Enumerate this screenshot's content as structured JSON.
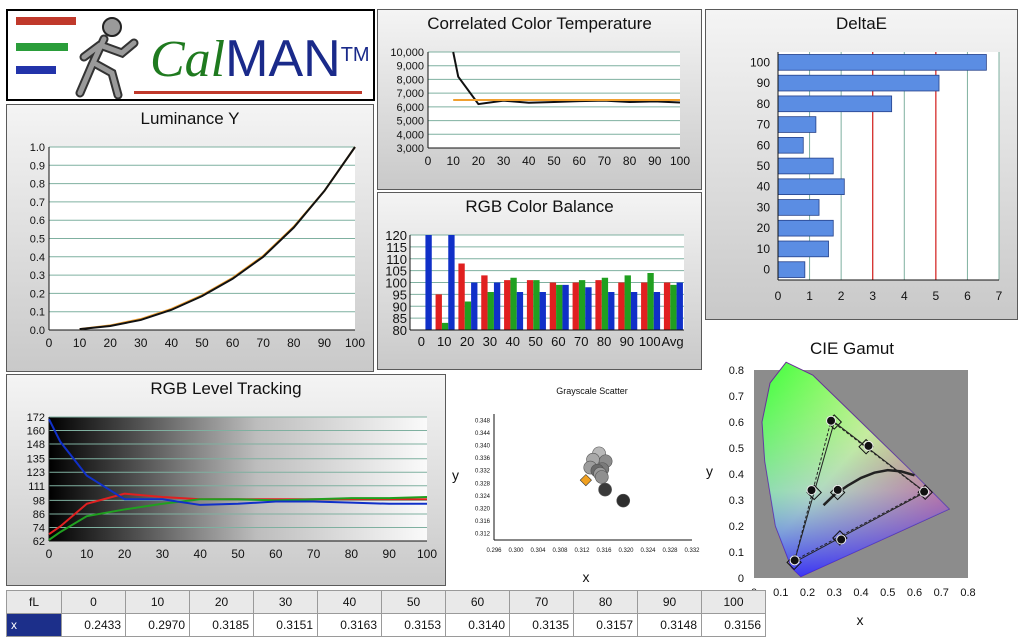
{
  "logo": {
    "text_cal": "Cal",
    "text_man": "MAN",
    "tm": "TM"
  },
  "charts": {
    "cct": {
      "title": "Correlated Color Temperature",
      "type": "line",
      "x": [
        10,
        12,
        20,
        30,
        40,
        50,
        60,
        70,
        80,
        90,
        100
      ],
      "series": [
        {
          "values": [
            10000,
            8200,
            6200,
            6450,
            6300,
            6350,
            6420,
            6450,
            6350,
            6400,
            6320
          ],
          "color": "#111111"
        },
        {
          "values": [
            6500,
            6500,
            6500,
            6500,
            6500,
            6500,
            6500,
            6500,
            6500,
            6500,
            6500
          ],
          "color": "#f0a030"
        }
      ],
      "yticks": [
        "10,000",
        "9,000",
        "8,000",
        "7,000",
        "6,000",
        "5,000",
        "4,000",
        "3,000"
      ],
      "xticks": [
        "0",
        "10",
        "20",
        "30",
        "40",
        "50",
        "60",
        "70",
        "80",
        "90",
        "100"
      ],
      "ylim": [
        3000,
        10000
      ],
      "xlim": [
        0,
        100
      ]
    },
    "deltae": {
      "title": "DeltaE",
      "type": "bar",
      "categories": [
        "100",
        "90",
        "80",
        "70",
        "60",
        "50",
        "40",
        "30",
        "20",
        "10",
        "0"
      ],
      "values": [
        6.6,
        5.1,
        3.6,
        1.2,
        0.8,
        1.75,
        2.1,
        1.3,
        1.75,
        1.6,
        0.85
      ],
      "xticks": [
        "0",
        "1",
        "2",
        "3",
        "4",
        "5",
        "6",
        "7"
      ],
      "xlim": [
        0,
        7
      ],
      "thresholds": [
        3,
        5
      ],
      "bar_color": "#5b8de3",
      "threshold_color": "#dd2222"
    },
    "luminance": {
      "title": "Luminance Y",
      "type": "line",
      "x": [
        10,
        20,
        30,
        40,
        50,
        60,
        70,
        80,
        90,
        100
      ],
      "series": [
        {
          "values": [
            0.005,
            0.025,
            0.06,
            0.115,
            0.19,
            0.285,
            0.405,
            0.565,
            0.76,
            1.0
          ],
          "color": "#f0a030"
        },
        {
          "values": [
            0.005,
            0.022,
            0.055,
            0.11,
            0.185,
            0.28,
            0.4,
            0.56,
            0.76,
            1.0
          ],
          "color": "#111111"
        }
      ],
      "yticks": [
        "1.0",
        "0.9",
        "0.8",
        "0.7",
        "0.6",
        "0.5",
        "0.4",
        "0.3",
        "0.2",
        "0.1",
        "0.0"
      ],
      "xticks": [
        "0",
        "10",
        "20",
        "30",
        "40",
        "50",
        "60",
        "70",
        "80",
        "90",
        "100"
      ],
      "ylim": [
        0,
        1
      ],
      "xlim": [
        0,
        100
      ]
    },
    "balance": {
      "title": "RGB Color Balance",
      "type": "bar",
      "categories": [
        "0",
        "10",
        "20",
        "30",
        "40",
        "50",
        "60",
        "70",
        "80",
        "90",
        "100",
        "Avg"
      ],
      "series": [
        {
          "name": "R",
          "color": "#e02020",
          "values": [
            null,
            95,
            108,
            103,
            101,
            101,
            100,
            100,
            101,
            100,
            100,
            100
          ]
        },
        {
          "name": "G",
          "color": "#20a020",
          "values": [
            null,
            83,
            92,
            96,
            102,
            101,
            99,
            101,
            102,
            103,
            104,
            99
          ]
        },
        {
          "name": "B",
          "color": "#1030c8",
          "values": [
            120,
            120,
            100,
            100,
            96,
            96,
            99,
            98,
            96,
            96,
            96,
            100
          ]
        }
      ],
      "yticks": [
        "120",
        "115",
        "110",
        "105",
        "100",
        "95",
        "90",
        "85",
        "80"
      ],
      "xticks": [
        "0",
        "10",
        "20",
        "30",
        "40",
        "50",
        "60",
        "70",
        "80",
        "90",
        "100",
        "Avg"
      ],
      "ylim": [
        80,
        120
      ]
    },
    "level": {
      "title": "RGB Level Tracking",
      "type": "line",
      "x": [
        0,
        3,
        10,
        20,
        30,
        40,
        50,
        60,
        70,
        80,
        90,
        100
      ],
      "series": [
        {
          "name": "R",
          "color": "#e02020",
          "values": [
            68,
            75,
            95,
            104,
            101,
            99,
            99,
            99,
            99,
            99,
            99,
            99
          ]
        },
        {
          "name": "G",
          "color": "#20a020",
          "values": [
            63,
            70,
            84,
            90,
            95,
            99,
            99,
            98,
            99,
            100,
            100,
            101
          ]
        },
        {
          "name": "B",
          "color": "#1030c8",
          "values": [
            170,
            150,
            120,
            99,
            99,
            94,
            95,
            97,
            97,
            96,
            95,
            95
          ]
        }
      ],
      "yticks": [
        "172",
        "160",
        "148",
        "135",
        "123",
        "111",
        "98",
        "86",
        "74",
        "62"
      ],
      "xticks": [
        "0",
        "10",
        "20",
        "30",
        "40",
        "50",
        "60",
        "70",
        "80",
        "90",
        "100"
      ],
      "ylim": [
        62,
        172
      ],
      "xlim": [
        0,
        100
      ]
    },
    "scatter": {
      "title": "Grayscale Scatter",
      "type": "scatter",
      "xlabel": "x",
      "ylabel": "y",
      "xticks": [
        "0.296",
        "0.300",
        "0.304",
        "0.308",
        "0.312",
        "0.316",
        "0.320",
        "0.324",
        "0.328",
        "0.332"
      ],
      "yticks": [
        "0.348",
        "0.344",
        "0.340",
        "0.336",
        "0.332",
        "0.328",
        "0.324",
        "0.320",
        "0.316",
        "0.312"
      ],
      "xlim": [
        0.296,
        0.332
      ],
      "ylim": [
        0.31,
        0.35
      ],
      "points": [
        {
          "x": 0.3151,
          "y": 0.3375,
          "shade": "#b8b8b8"
        },
        {
          "x": 0.314,
          "y": 0.3355,
          "shade": "#a8a8a8"
        },
        {
          "x": 0.3163,
          "y": 0.335,
          "shade": "#8c8c8c"
        },
        {
          "x": 0.3135,
          "y": 0.333,
          "shade": "#9c9c9c"
        },
        {
          "x": 0.3157,
          "y": 0.3325,
          "shade": "#7a7a7a"
        },
        {
          "x": 0.3148,
          "y": 0.332,
          "shade": "#6a6a6a"
        },
        {
          "x": 0.3153,
          "y": 0.331,
          "shade": "#9a9a9a"
        },
        {
          "x": 0.3156,
          "y": 0.33,
          "shade": "#909090"
        },
        {
          "x": 0.3162,
          "y": 0.326,
          "shade": "#3a3a3a"
        },
        {
          "x": 0.3195,
          "y": 0.3225,
          "shade": "#2e2e2e"
        }
      ],
      "reference": {
        "x": 0.3127,
        "y": 0.329,
        "color": "#f0a020"
      }
    },
    "cie": {
      "title": "CIE Gamut",
      "type": "scatter",
      "xlabel": "x",
      "ylabel": "y",
      "xticks": [
        "0",
        "0.1",
        "0.2",
        "0.3",
        "0.4",
        "0.5",
        "0.6",
        "0.7",
        "0.8"
      ],
      "yticks": [
        "0.8",
        "0.7",
        "0.6",
        "0.5",
        "0.4",
        "0.3",
        "0.2",
        "0.1",
        "0"
      ],
      "xlim": [
        0,
        0.8
      ],
      "ylim": [
        0,
        0.8
      ],
      "target_gamut": [
        [
          0.64,
          0.33
        ],
        [
          0.3,
          0.6
        ],
        [
          0.15,
          0.06
        ]
      ],
      "target_secondaries": [
        [
          0.225,
          0.329
        ],
        [
          0.321,
          0.154
        ],
        [
          0.419,
          0.505
        ],
        [
          0.3127,
          0.329
        ]
      ],
      "measured_gamut": [
        [
          0.636,
          0.332
        ],
        [
          0.288,
          0.605
        ],
        [
          0.152,
          0.068
        ]
      ],
      "measured_secondaries": [
        [
          0.215,
          0.338
        ],
        [
          0.326,
          0.148
        ],
        [
          0.428,
          0.508
        ],
        [
          0.313,
          0.339
        ]
      ],
      "planckian": [
        [
          0.26,
          0.28
        ],
        [
          0.3,
          0.32
        ],
        [
          0.35,
          0.355
        ],
        [
          0.4,
          0.385
        ],
        [
          0.45,
          0.405
        ],
        [
          0.5,
          0.415
        ],
        [
          0.55,
          0.41
        ],
        [
          0.6,
          0.395
        ]
      ]
    }
  },
  "table": {
    "header": [
      "fL",
      "0",
      "10",
      "20",
      "30",
      "40",
      "50",
      "60",
      "70",
      "80",
      "90",
      "100"
    ],
    "row": [
      "x",
      "0.2433",
      "0.2970",
      "0.3185",
      "0.3151",
      "0.3163",
      "0.3153",
      "0.3140",
      "0.3135",
      "0.3157",
      "0.3148",
      "0.3156"
    ]
  }
}
